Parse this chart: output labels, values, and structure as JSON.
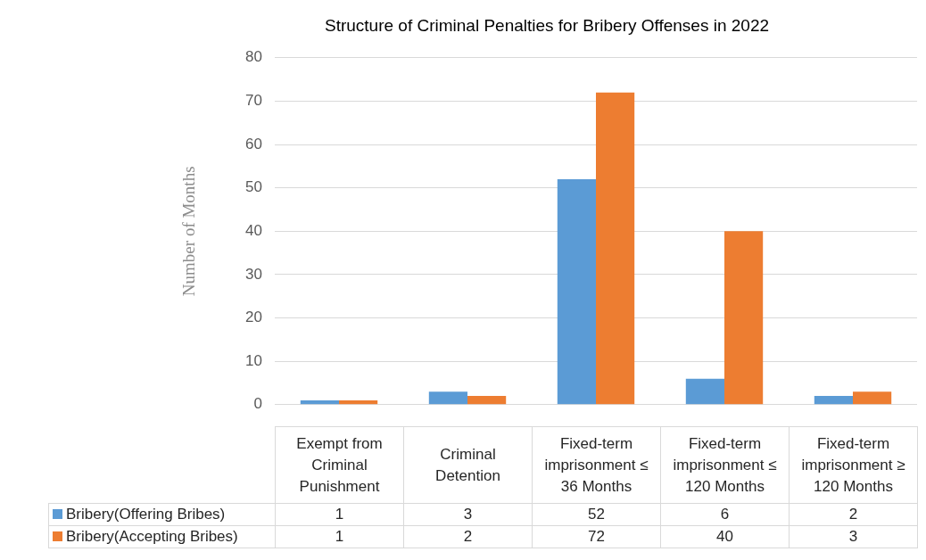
{
  "chart_data": {
    "type": "bar",
    "title": "Structure of Criminal Penalties for Bribery Offenses in 2022",
    "ylabel": "Number of Months",
    "categories": [
      "Exempt from Criminal Punishment",
      "Criminal Detention",
      "Fixed-term imprisonment ≤ 36 Months",
      "Fixed-term imprisonment ≤ 120 Months",
      "Fixed-term imprisonment ≥ 120 Months"
    ],
    "series": [
      {
        "name": "Bribery(Offering Bribes)",
        "color": "#5b9bd5",
        "values": [
          1,
          3,
          52,
          6,
          2
        ]
      },
      {
        "name": "Bribery(Accepting Bribes)",
        "color": "#ed7d31",
        "values": [
          1,
          2,
          72,
          40,
          3
        ]
      }
    ],
    "ylim": [
      0,
      80
    ],
    "yticks": [
      0,
      10,
      20,
      30,
      40,
      50,
      60,
      70,
      80
    ],
    "grid": "y",
    "legend": "bottom",
    "data_labels": true
  }
}
